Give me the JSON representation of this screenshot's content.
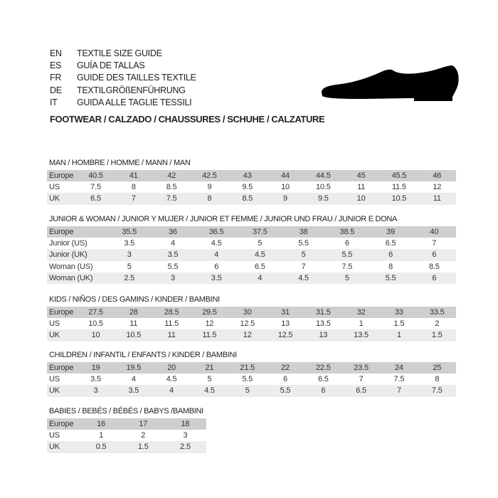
{
  "header": {
    "languages": [
      {
        "code": "EN",
        "text": "TEXTILE SIZE GUIDE"
      },
      {
        "code": "ES",
        "text": "GUÍA DE TALLAS"
      },
      {
        "code": "FR",
        "text": "GUIDE DES TAILLES TEXTILE"
      },
      {
        "code": "DE",
        "text": "TEXTILGRÖßENFÜHRUNG"
      },
      {
        "code": "IT",
        "text": "GUIDA ALLE TAGLIE TESSILI"
      }
    ],
    "subtitle": "FOOTWEAR / CALZADO / CHAUSSURES / SCHUHE / CALZATURE",
    "icon": "shoe-icon"
  },
  "sections": [
    {
      "title": "MAN / HOMBRE / HOMME / MANN / MAN",
      "rows": [
        {
          "label": "Europe",
          "values": [
            "40.5",
            "41",
            "42",
            "42.5",
            "43",
            "44",
            "44.5",
            "45",
            "45.5",
            "46"
          ]
        },
        {
          "label": "US",
          "values": [
            "7.5",
            "8",
            "8.5",
            "9",
            "9.5",
            "10",
            "10.5",
            "11",
            "11.5",
            "12"
          ]
        },
        {
          "label": "UK",
          "values": [
            "6.5",
            "7",
            "7.5",
            "8",
            "8.5",
            "9",
            "9.5",
            "10",
            "10.5",
            "11"
          ]
        }
      ]
    },
    {
      "title": "JUNIOR & WOMAN / JUNIOR Y MUJER / JUNIOR ET FEMME / JUNIOR UND FRAU / JUNIOR E DONA",
      "rows": [
        {
          "label": "Europe",
          "values": [
            "35.5",
            "36",
            "36.5",
            "37.5",
            "38",
            "38.5",
            "39",
            "40"
          ]
        },
        {
          "label": "Junior (US)",
          "values": [
            "3.5",
            "4",
            "4.5",
            "5",
            "5.5",
            "6",
            "6.5",
            "7"
          ]
        },
        {
          "label": "Junior (UK)",
          "values": [
            "3",
            "3.5",
            "4",
            "4.5",
            "5",
            "5.5",
            "6",
            "6"
          ]
        },
        {
          "label": "Woman (US)",
          "values": [
            "5",
            "5.5",
            "6",
            "6.5",
            "7",
            "7.5",
            "8",
            "8.5"
          ]
        },
        {
          "label": "Woman (UK)",
          "values": [
            "2.5",
            "3",
            "3.5",
            "4",
            "4.5",
            "5",
            "5.5",
            "6"
          ]
        }
      ]
    },
    {
      "title": "KIDS / NIÑOS / DES GAMINS / KINDER / BAMBINI",
      "rows": [
        {
          "label": "Europe",
          "values": [
            "27.5",
            "28",
            "28.5",
            "29.5",
            "30",
            "31",
            "31.5",
            "32",
            "33",
            "33.5"
          ]
        },
        {
          "label": "US",
          "values": [
            "10.5",
            "11",
            "11.5",
            "12",
            "12.5",
            "13",
            "13.5",
            "1",
            "1.5",
            "2"
          ]
        },
        {
          "label": "UK",
          "values": [
            "10",
            "10.5",
            "11",
            "11.5",
            "12",
            "12.5",
            "13",
            "13.5",
            "1",
            "1.5"
          ]
        }
      ]
    },
    {
      "title": "CHILDREN / INFANTIL / ENFANTS / KINDER / BAMBINI",
      "rows": [
        {
          "label": "Europe",
          "values": [
            "19",
            "19.5",
            "20",
            "21",
            "21.5",
            "22",
            "22.5",
            "23.5",
            "24",
            "25"
          ]
        },
        {
          "label": "US",
          "values": [
            "3.5",
            "4",
            "4.5",
            "5",
            "5.5",
            "6",
            "6.5",
            "7",
            "7.5",
            "8"
          ]
        },
        {
          "label": "UK",
          "values": [
            "3",
            "3.5",
            "4",
            "4.5",
            "5",
            "5.5",
            "6",
            "6.5",
            "7",
            "7.5"
          ]
        }
      ]
    },
    {
      "title": "BABIES  / BEBÉS / BÉBÉS / BABYS /BAMBINI",
      "rows": [
        {
          "label": "Europe",
          "values": [
            "16",
            "17",
            "18"
          ]
        },
        {
          "label": "US",
          "values": [
            "1",
            "2",
            "3"
          ]
        },
        {
          "label": "UK",
          "values": [
            "0.5",
            "1.5",
            "2.5"
          ]
        }
      ]
    }
  ]
}
